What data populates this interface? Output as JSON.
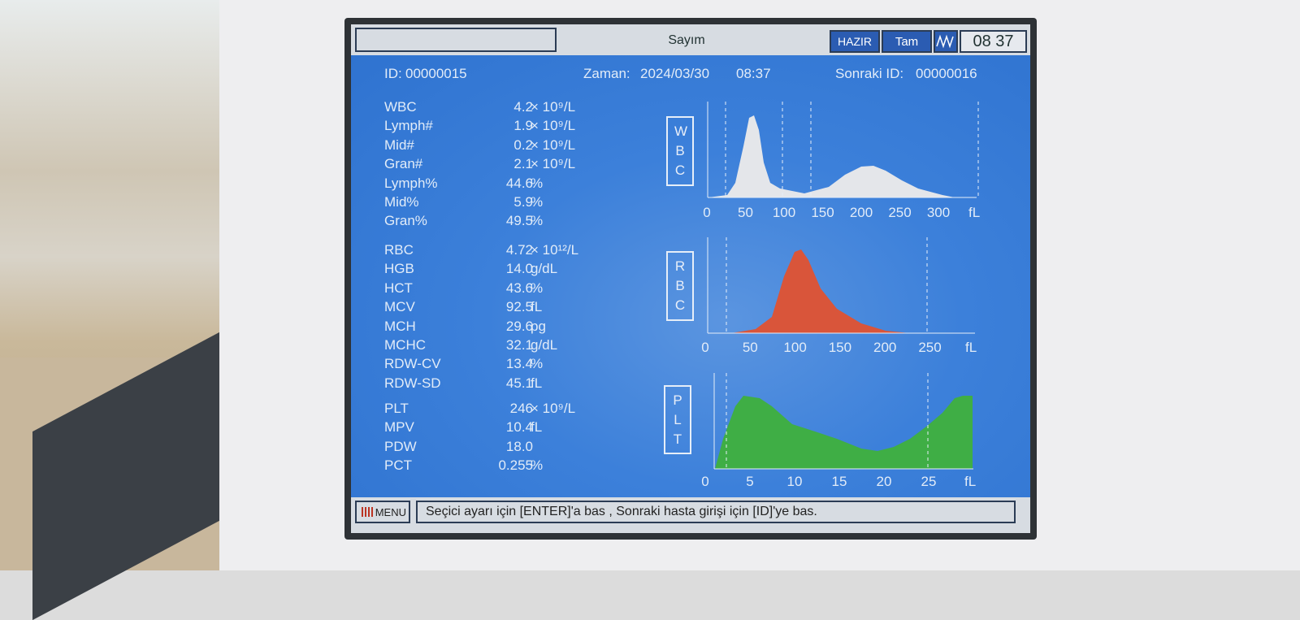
{
  "header": {
    "title": "Sayım",
    "status": "HAZIR",
    "mode": "Tam",
    "clock": "08 37"
  },
  "info": {
    "id_label": "ID:",
    "id": "00000015",
    "time_label": "Zaman:",
    "date": "2024/03/30",
    "time": "08:37",
    "next_label": "Sonraki ID:",
    "next_id": "00000016"
  },
  "results": [
    [
      {
        "name": "WBC",
        "value": "4.2",
        "unit": "× 10⁹/L"
      },
      {
        "name": "Lymph#",
        "value": "1.9",
        "unit": "× 10⁹/L"
      },
      {
        "name": "Mid#",
        "value": "0.2",
        "unit": "× 10⁹/L"
      },
      {
        "name": "Gran#",
        "value": "2.1",
        "unit": "× 10⁹/L"
      },
      {
        "name": "Lymph%",
        "value": "44.6",
        "unit": "%"
      },
      {
        "name": "Mid%",
        "value": "5.9",
        "unit": "%"
      },
      {
        "name": "Gran%",
        "value": "49.5",
        "unit": "%"
      }
    ],
    [
      {
        "name": "RBC",
        "value": "4.72",
        "unit": "× 10¹²/L"
      },
      {
        "name": "HGB",
        "value": "14.0",
        "unit": "g/dL"
      },
      {
        "name": "HCT",
        "value": "43.6",
        "unit": "%"
      },
      {
        "name": "MCV",
        "value": "92.5",
        "unit": "fL"
      },
      {
        "name": "MCH",
        "value": "29.6",
        "unit": "pg"
      },
      {
        "name": "MCHC",
        "value": "32.1",
        "unit": "g/dL"
      },
      {
        "name": "RDW-CV",
        "value": "13.4",
        "unit": "%"
      },
      {
        "name": "RDW-SD",
        "value": "45.1",
        "unit": "fL"
      }
    ],
    [
      {
        "name": "PLT",
        "value": "246",
        "unit": "× 10⁹/L"
      },
      {
        "name": "MPV",
        "value": "10.4",
        "unit": "fL"
      },
      {
        "name": "PDW",
        "value": "18.0",
        "unit": ""
      },
      {
        "name": "PCT",
        "value": "0.255",
        "unit": "%"
      }
    ]
  ],
  "histograms": [
    {
      "label": "WBC",
      "ticks": [
        "0",
        "50",
        "100",
        "150",
        "200",
        "250",
        "300"
      ],
      "unit": "fL"
    },
    {
      "label": "RBC",
      "ticks": [
        "0",
        "50",
        "100",
        "150",
        "200",
        "250"
      ],
      "unit": "fL"
    },
    {
      "label": "PLT",
      "ticks": [
        "0",
        "5",
        "10",
        "15",
        "20",
        "25"
      ],
      "unit": "fL"
    }
  ],
  "footer": {
    "menu": "MENU",
    "message": "Seçici ayarı için [ENTER]'a bas , Sonraki hasta girişi için [ID]'ye bas."
  }
}
